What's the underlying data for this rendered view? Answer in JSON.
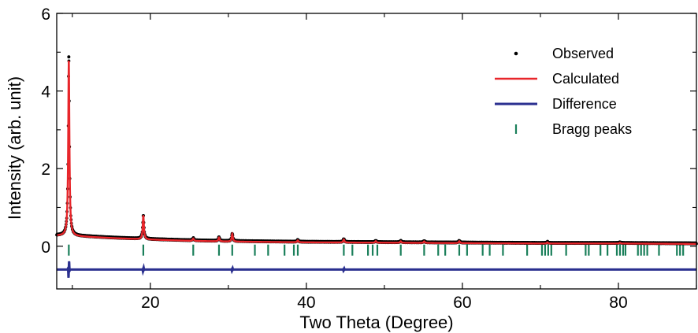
{
  "chart_data": {
    "type": "line",
    "xlabel": "Two Theta (Degree)",
    "ylabel": "Intensity (arb. unit)",
    "xlim": [
      8,
      90
    ],
    "ylim": [
      -1.1,
      6
    ],
    "x_ticks": [
      20,
      40,
      60,
      80
    ],
    "x_tick_labels": [
      "20",
      "40",
      "60",
      "80"
    ],
    "y_ticks": [
      0,
      2,
      4,
      6
    ],
    "y_tick_labels": [
      "0",
      "2",
      "4",
      "6"
    ],
    "grid": false,
    "legend_position": "top-right",
    "colors": {
      "observed": "#000000",
      "calculated": "#e8262b",
      "difference": "#2a2f8f",
      "bragg": "#1a7f5a"
    },
    "baseline": {
      "x": [
        8,
        10,
        12,
        15,
        20,
        25,
        30,
        40,
        50,
        60,
        70,
        80,
        90
      ],
      "y": [
        0.27,
        0.26,
        0.24,
        0.21,
        0.17,
        0.14,
        0.12,
        0.1,
        0.09,
        0.08,
        0.07,
        0.07,
        0.06
      ]
    },
    "peaks": [
      {
        "x": 9.55,
        "height": 4.55
      },
      {
        "x": 19.1,
        "height": 0.62
      },
      {
        "x": 25.5,
        "height": 0.06
      },
      {
        "x": 28.8,
        "height": 0.1
      },
      {
        "x": 30.5,
        "height": 0.2
      },
      {
        "x": 38.9,
        "height": 0.05
      },
      {
        "x": 44.8,
        "height": 0.08
      },
      {
        "x": 48.9,
        "height": 0.04
      },
      {
        "x": 52.1,
        "height": 0.04
      },
      {
        "x": 55.1,
        "height": 0.04
      },
      {
        "x": 59.6,
        "height": 0.05
      },
      {
        "x": 70.9,
        "height": 0.03
      },
      {
        "x": 80.2,
        "height": 0.02
      }
    ],
    "difference_offset": -0.6,
    "difference_spikes": [
      {
        "x": 9.55,
        "amplitude": 0.28
      },
      {
        "x": 19.1,
        "amplitude": 0.07
      },
      {
        "x": 30.5,
        "amplitude": 0.05
      },
      {
        "x": 44.8,
        "amplitude": 0.04
      }
    ],
    "bragg_y": -0.1,
    "bragg_peaks": [
      9.55,
      19.1,
      25.5,
      28.8,
      30.5,
      33.4,
      35.1,
      37.2,
      38.4,
      38.9,
      44.8,
      45.9,
      47.9,
      48.5,
      49.1,
      52.1,
      55.1,
      56.9,
      57.8,
      59.6,
      60.6,
      62.6,
      63.5,
      65.2,
      68.3,
      70.2,
      70.6,
      71.0,
      71.4,
      73.3,
      75.8,
      76.2,
      77.7,
      78.6,
      79.8,
      80.2,
      80.6,
      80.9,
      82.5,
      82.9,
      83.3,
      83.7,
      85.2,
      87.5,
      87.9,
      88.3
    ],
    "series": [
      {
        "name": "Observed",
        "style": "dots"
      },
      {
        "name": "Calculated",
        "style": "line"
      },
      {
        "name": "Difference",
        "style": "line"
      },
      {
        "name": "Bragg peaks",
        "style": "ticks"
      }
    ]
  }
}
